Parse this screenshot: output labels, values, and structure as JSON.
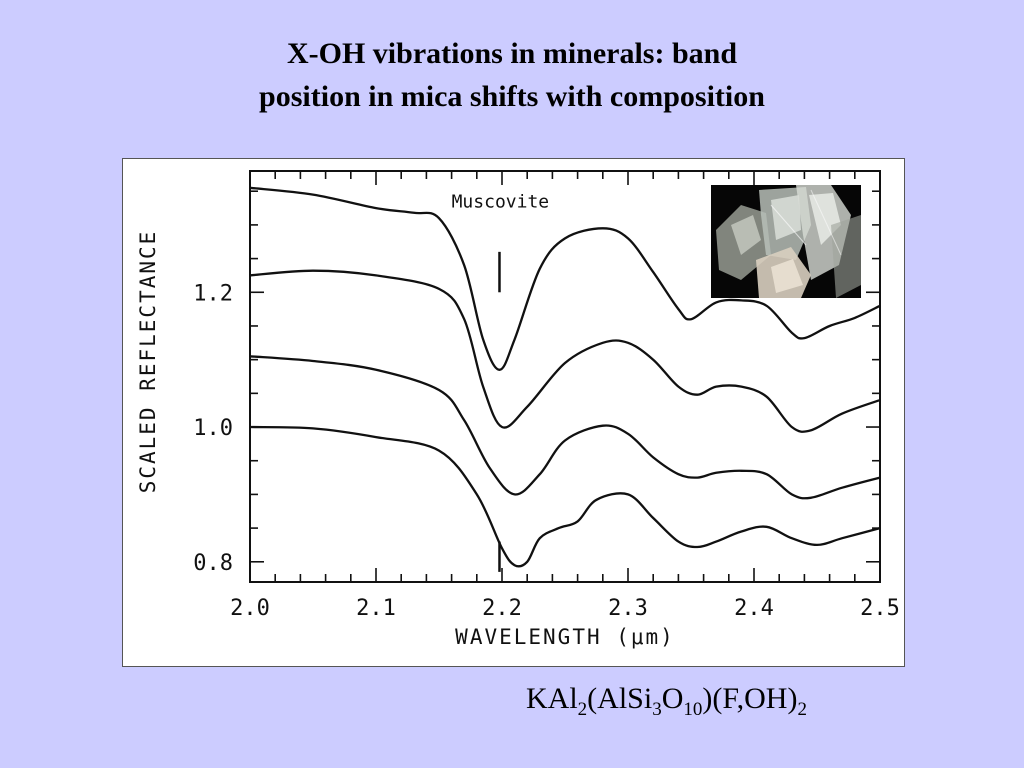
{
  "slide": {
    "title_line1": "X-OH vibrations in minerals: band",
    "title_line2": "position in mica shifts with composition"
  },
  "formula": {
    "p1": "KAl",
    "s1": "2",
    "p2": "(AlSi",
    "s2": "3",
    "p3": "O",
    "s3": "10",
    "p4": ")(F,OH)",
    "s4": "2"
  },
  "chart_data": {
    "type": "line",
    "title": "",
    "annotation": "Muscovite",
    "xlabel": "WAVELENGTH (μm)",
    "ylabel": "SCALED REFLECTANCE",
    "xlim": [
      2.0,
      2.5
    ],
    "ylim": [
      0.77,
      1.38
    ],
    "x_ticks": [
      "2.0",
      "2.1",
      "2.2",
      "2.3",
      "2.4",
      "2.5"
    ],
    "y_ticks": [
      "0.8",
      "1.0",
      "1.2"
    ],
    "band_markers": [
      {
        "x": 2.198,
        "y_range": [
          1.2,
          1.26
        ]
      },
      {
        "x": 2.198,
        "y_range": [
          0.785,
          0.83
        ]
      }
    ],
    "series": [
      {
        "points": [
          [
            2.0,
            1.355
          ],
          [
            2.05,
            1.345
          ],
          [
            2.1,
            1.325
          ],
          [
            2.13,
            1.318
          ],
          [
            2.15,
            1.31
          ],
          [
            2.17,
            1.24
          ],
          [
            2.185,
            1.13
          ],
          [
            2.198,
            1.085
          ],
          [
            2.21,
            1.13
          ],
          [
            2.23,
            1.235
          ],
          [
            2.25,
            1.28
          ],
          [
            2.28,
            1.295
          ],
          [
            2.3,
            1.28
          ],
          [
            2.32,
            1.23
          ],
          [
            2.34,
            1.175
          ],
          [
            2.35,
            1.16
          ],
          [
            2.37,
            1.185
          ],
          [
            2.39,
            1.188
          ],
          [
            2.41,
            1.18
          ],
          [
            2.43,
            1.14
          ],
          [
            2.44,
            1.132
          ],
          [
            2.46,
            1.15
          ],
          [
            2.48,
            1.162
          ],
          [
            2.5,
            1.18
          ]
        ]
      },
      {
        "points": [
          [
            2.0,
            1.225
          ],
          [
            2.05,
            1.232
          ],
          [
            2.1,
            1.225
          ],
          [
            2.15,
            1.205
          ],
          [
            2.17,
            1.16
          ],
          [
            2.185,
            1.06
          ],
          [
            2.2,
            1.0
          ],
          [
            2.22,
            1.03
          ],
          [
            2.25,
            1.095
          ],
          [
            2.28,
            1.125
          ],
          [
            2.3,
            1.125
          ],
          [
            2.32,
            1.1
          ],
          [
            2.34,
            1.06
          ],
          [
            2.355,
            1.048
          ],
          [
            2.37,
            1.06
          ],
          [
            2.39,
            1.06
          ],
          [
            2.41,
            1.045
          ],
          [
            2.43,
            1.0
          ],
          [
            2.445,
            0.995
          ],
          [
            2.47,
            1.02
          ],
          [
            2.5,
            1.04
          ]
        ]
      },
      {
        "points": [
          [
            2.0,
            1.105
          ],
          [
            2.05,
            1.098
          ],
          [
            2.1,
            1.085
          ],
          [
            2.15,
            1.055
          ],
          [
            2.17,
            1.01
          ],
          [
            2.19,
            0.94
          ],
          [
            2.21,
            0.9
          ],
          [
            2.23,
            0.93
          ],
          [
            2.25,
            0.98
          ],
          [
            2.28,
            1.002
          ],
          [
            2.3,
            0.99
          ],
          [
            2.32,
            0.955
          ],
          [
            2.34,
            0.93
          ],
          [
            2.355,
            0.925
          ],
          [
            2.37,
            0.932
          ],
          [
            2.39,
            0.935
          ],
          [
            2.41,
            0.93
          ],
          [
            2.43,
            0.9
          ],
          [
            2.445,
            0.895
          ],
          [
            2.47,
            0.91
          ],
          [
            2.5,
            0.925
          ]
        ]
      },
      {
        "points": [
          [
            2.0,
            1.0
          ],
          [
            2.05,
            0.998
          ],
          [
            2.1,
            0.985
          ],
          [
            2.15,
            0.965
          ],
          [
            2.18,
            0.9
          ],
          [
            2.2,
            0.82
          ],
          [
            2.21,
            0.795
          ],
          [
            2.22,
            0.8
          ],
          [
            2.23,
            0.835
          ],
          [
            2.245,
            0.85
          ],
          [
            2.26,
            0.86
          ],
          [
            2.275,
            0.892
          ],
          [
            2.3,
            0.9
          ],
          [
            2.32,
            0.865
          ],
          [
            2.34,
            0.83
          ],
          [
            2.355,
            0.822
          ],
          [
            2.37,
            0.83
          ],
          [
            2.39,
            0.845
          ],
          [
            2.41,
            0.852
          ],
          [
            2.43,
            0.835
          ],
          [
            2.45,
            0.825
          ],
          [
            2.47,
            0.835
          ],
          [
            2.5,
            0.85
          ]
        ]
      }
    ]
  }
}
